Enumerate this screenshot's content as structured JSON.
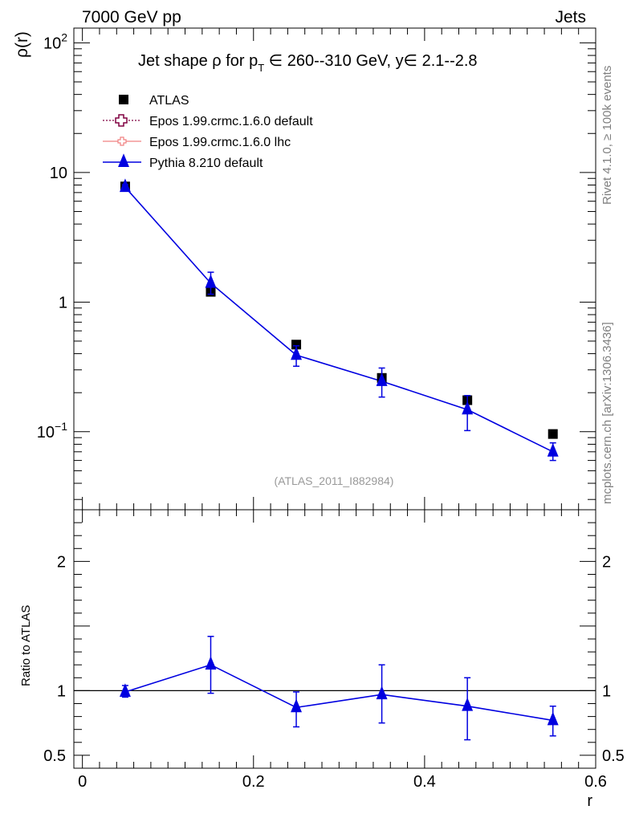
{
  "header": {
    "left": "7000 GeV pp",
    "right": "Jets"
  },
  "side_labels": {
    "rivet": "Rivet 4.1.0, ≥ 100k events",
    "mcplots": "mcplots.cern.ch [arXiv:1306.3436]"
  },
  "colors": {
    "atlas": "#000000",
    "epos_default": "#800040",
    "epos_lhc": "#f08080",
    "pythia": "#0000e0",
    "watermark": "#999999"
  },
  "chart_data": [
    {
      "type": "scatter",
      "panel": "main",
      "title_main": "Jet shape ρ for p",
      "title_sub": "T",
      "title_rest": " ∈ 260--310 GeV, y∈ 2.1--2.8",
      "ylabel": "ρ(r)",
      "yscale": "log",
      "ylim": [
        0.025,
        130
      ],
      "xlim": [
        -0.01,
        0.6
      ],
      "yticks": [
        {
          "value": 0.1,
          "base": "10",
          "exp": "−1"
        },
        {
          "value": 1,
          "label": "1"
        },
        {
          "value": 10,
          "label": "10"
        },
        {
          "value": 100,
          "base": "10",
          "exp": "2"
        }
      ],
      "legend": [
        {
          "key": "atlas",
          "label": "ATLAS",
          "marker": "square"
        },
        {
          "key": "epos_default",
          "label": "Epos 1.99.crmc.1.6.0 default",
          "marker": "open-cross"
        },
        {
          "key": "epos_lhc",
          "label": "Epos 1.99.crmc.1.6.0 lhc",
          "marker": "open-cross-small"
        },
        {
          "key": "pythia",
          "label": "Pythia 8.210 default",
          "marker": "triangle"
        }
      ],
      "watermark": "(ATLAS_2011_I882984)",
      "series": [
        {
          "key": "atlas",
          "name": "ATLAS",
          "x": [
            0.05,
            0.15,
            0.25,
            0.35,
            0.45,
            0.55
          ],
          "y": [
            7.8,
            1.2,
            0.47,
            0.26,
            0.175,
            0.096
          ],
          "yerr": [
            0.1,
            0.03,
            0.015,
            0.01,
            0.008,
            0.004
          ]
        },
        {
          "key": "pythia",
          "name": "Pythia 8.210 default",
          "x": [
            0.05,
            0.15,
            0.25,
            0.35,
            0.45,
            0.55
          ],
          "y": [
            7.7,
            1.4,
            0.39,
            0.245,
            0.148,
            0.07
          ],
          "ylo": [
            7.35,
            1.15,
            0.32,
            0.185,
            0.102,
            0.06
          ],
          "yhi": [
            8.05,
            1.7,
            0.46,
            0.31,
            0.19,
            0.082
          ]
        }
      ]
    },
    {
      "type": "line",
      "panel": "ratio",
      "ylabel": "Ratio to ATLAS",
      "xlabel": "r",
      "ylim": [
        0.4,
        2.4
      ],
      "xlim": [
        -0.01,
        0.6
      ],
      "reference_line": 1,
      "yticks": [
        {
          "value": 0.5,
          "label": "0.5"
        },
        {
          "value": 1,
          "label": "1"
        },
        {
          "value": 2,
          "label": "2"
        }
      ],
      "xticks": [
        {
          "value": 0,
          "label": "0"
        },
        {
          "value": 0.2,
          "label": "0.2"
        },
        {
          "value": 0.4,
          "label": "0.4"
        },
        {
          "value": 0.6,
          "label": "0.6"
        }
      ],
      "series": [
        {
          "key": "pythia",
          "name": "Pythia 8.210 default",
          "x": [
            0.05,
            0.15,
            0.25,
            0.35,
            0.45,
            0.55
          ],
          "y": [
            0.99,
            1.2,
            0.87,
            0.97,
            0.88,
            0.77
          ],
          "ylo": [
            0.95,
            0.98,
            0.72,
            0.75,
            0.62,
            0.65
          ],
          "yhi": [
            1.04,
            1.42,
            0.99,
            1.2,
            1.1,
            0.88
          ]
        }
      ]
    }
  ]
}
